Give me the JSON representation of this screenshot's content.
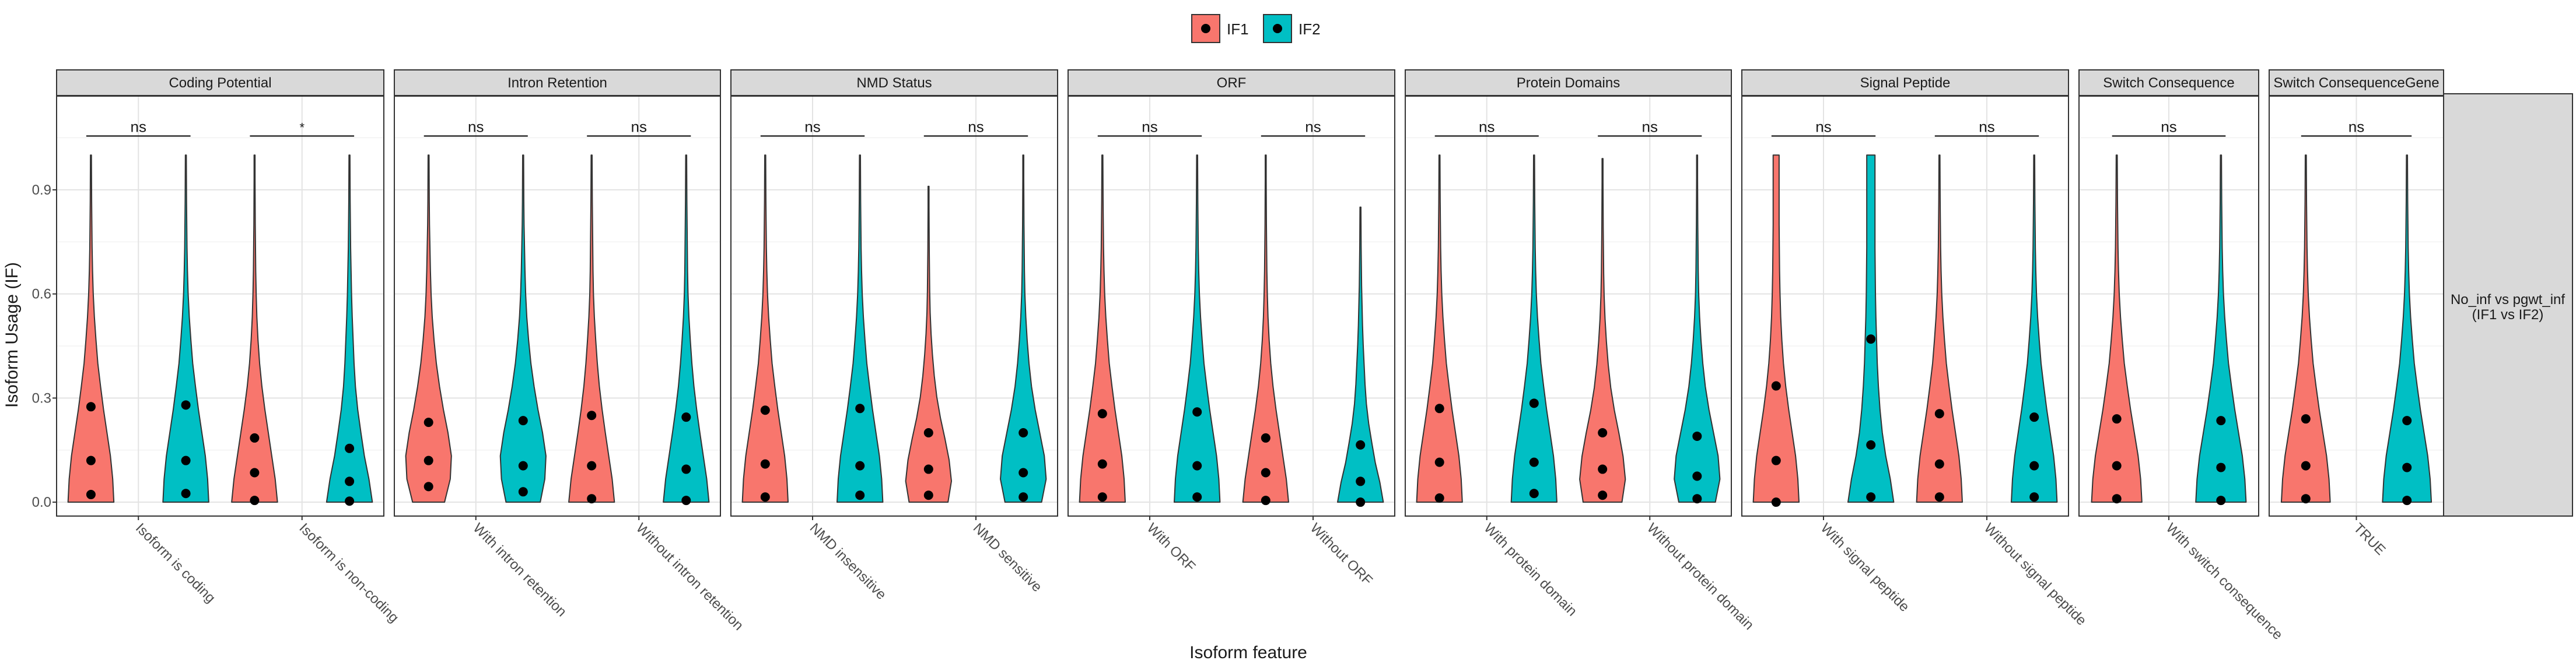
{
  "chart_data": {
    "type": "violin",
    "ylabel": "Isoform Usage (IF)",
    "xlabel": "Isoform feature",
    "ylim": [
      -0.04,
      1.17
    ],
    "y_ticks": [
      "0.0",
      "0.3",
      "0.6",
      "0.9"
    ],
    "y_tick_values": [
      0.0,
      0.3,
      0.6,
      0.9
    ],
    "grid": true,
    "legend_position": "top",
    "strip_right": "No_inf vs pgwt_inf\n(IF1 vs IF2)",
    "series": [
      {
        "name": "IF1",
        "color": "#F8766D"
      },
      {
        "name": "IF2",
        "color": "#00BFC4"
      }
    ],
    "panels": [
      {
        "title": "Coding Potential",
        "groups": [
          {
            "label": "Isoform is coding",
            "sig": "ns",
            "violins": [
              {
                "max": 1.0,
                "stats": [
                  0.022,
                  0.12,
                  0.275
                ],
                "w": [
                  1.0,
                  0.95,
                  0.85,
                  0.7,
                  0.55,
                  0.42,
                  0.3,
                  0.22,
                  0.15,
                  0.1,
                  0.07,
                  0.05,
                  0.04,
                  0.03,
                  0.025,
                  0.02
                ]
              },
              {
                "max": 1.0,
                "stats": [
                  0.025,
                  0.12,
                  0.28
                ],
                "w": [
                  1.0,
                  0.95,
                  0.85,
                  0.7,
                  0.55,
                  0.42,
                  0.3,
                  0.22,
                  0.15,
                  0.1,
                  0.07,
                  0.05,
                  0.04,
                  0.03,
                  0.025,
                  0.02
                ]
              }
            ]
          },
          {
            "label": "Isoform is non-coding",
            "sig": "*",
            "violins": [
              {
                "max": 1.0,
                "stats": [
                  0.005,
                  0.085,
                  0.185
                ],
                "w": [
                  1.0,
                  0.9,
                  0.75,
                  0.6,
                  0.45,
                  0.32,
                  0.22,
                  0.15,
                  0.1,
                  0.07,
                  0.05,
                  0.04,
                  0.03,
                  0.025,
                  0.02,
                  0.02
                ]
              },
              {
                "max": 1.0,
                "stats": [
                  0.003,
                  0.06,
                  0.155
                ],
                "w": [
                  1.0,
                  0.85,
                  0.65,
                  0.5,
                  0.36,
                  0.26,
                  0.2,
                  0.16,
                  0.12,
                  0.09,
                  0.07,
                  0.05,
                  0.04,
                  0.03,
                  0.025,
                  0.02
                ]
              }
            ]
          }
        ]
      },
      {
        "title": "Intron Retention",
        "groups": [
          {
            "label": "With intron retention",
            "sig": "ns",
            "violins": [
              {
                "max": 1.0,
                "stats": [
                  0.045,
                  0.12,
                  0.23
                ],
                "w": [
                  0.7,
                  0.95,
                  1.0,
                  0.85,
                  0.65,
                  0.48,
                  0.34,
                  0.24,
                  0.16,
                  0.11,
                  0.08,
                  0.06,
                  0.04,
                  0.03,
                  0.025,
                  0.02
                ]
              },
              {
                "max": 1.0,
                "stats": [
                  0.03,
                  0.105,
                  0.235
                ],
                "w": [
                  0.75,
                  0.95,
                  1.0,
                  0.85,
                  0.65,
                  0.48,
                  0.34,
                  0.24,
                  0.16,
                  0.11,
                  0.08,
                  0.06,
                  0.04,
                  0.03,
                  0.025,
                  0.02
                ]
              }
            ]
          },
          {
            "label": "Without intron retention",
            "sig": "ns",
            "violins": [
              {
                "max": 1.0,
                "stats": [
                  0.01,
                  0.105,
                  0.25
                ],
                "w": [
                  1.0,
                  0.9,
                  0.75,
                  0.6,
                  0.46,
                  0.34,
                  0.25,
                  0.18,
                  0.12,
                  0.08,
                  0.06,
                  0.05,
                  0.04,
                  0.03,
                  0.025,
                  0.02
                ]
              },
              {
                "max": 1.0,
                "stats": [
                  0.005,
                  0.095,
                  0.245
                ],
                "w": [
                  1.0,
                  0.9,
                  0.75,
                  0.6,
                  0.46,
                  0.34,
                  0.25,
                  0.18,
                  0.12,
                  0.08,
                  0.06,
                  0.05,
                  0.04,
                  0.03,
                  0.025,
                  0.02
                ]
              }
            ]
          }
        ]
      },
      {
        "title": "NMD Status",
        "groups": [
          {
            "label": "NMD insensitive",
            "sig": "ns",
            "violins": [
              {
                "max": 1.0,
                "stats": [
                  0.015,
                  0.11,
                  0.265
                ],
                "w": [
                  1.0,
                  0.95,
                  0.85,
                  0.7,
                  0.55,
                  0.42,
                  0.3,
                  0.22,
                  0.15,
                  0.1,
                  0.07,
                  0.05,
                  0.04,
                  0.03,
                  0.025,
                  0.02
                ]
              },
              {
                "max": 1.0,
                "stats": [
                  0.02,
                  0.105,
                  0.27
                ],
                "w": [
                  1.0,
                  0.95,
                  0.85,
                  0.7,
                  0.55,
                  0.42,
                  0.3,
                  0.22,
                  0.15,
                  0.1,
                  0.07,
                  0.05,
                  0.04,
                  0.03,
                  0.025,
                  0.02
                ]
              }
            ]
          },
          {
            "label": "NMD sensitive",
            "sig": "ns",
            "violins": [
              {
                "max": 0.91,
                "stats": [
                  0.02,
                  0.095,
                  0.2
                ],
                "w": [
                  0.85,
                  1.0,
                  0.9,
                  0.72,
                  0.52,
                  0.36,
                  0.25,
                  0.17,
                  0.11,
                  0.07,
                  0.05,
                  0.04,
                  0.03,
                  0.025,
                  0.02,
                  0.02
                ]
              },
              {
                "max": 1.0,
                "stats": [
                  0.015,
                  0.085,
                  0.2
                ],
                "w": [
                  0.8,
                  1.0,
                  0.92,
                  0.72,
                  0.52,
                  0.36,
                  0.25,
                  0.17,
                  0.11,
                  0.07,
                  0.05,
                  0.04,
                  0.03,
                  0.025,
                  0.02,
                  0.02
                ]
              }
            ]
          }
        ]
      },
      {
        "title": "ORF",
        "groups": [
          {
            "label": "With ORF",
            "sig": "ns",
            "violins": [
              {
                "max": 1.0,
                "stats": [
                  0.015,
                  0.11,
                  0.255
                ],
                "w": [
                  1.0,
                  0.95,
                  0.85,
                  0.7,
                  0.55,
                  0.42,
                  0.3,
                  0.22,
                  0.15,
                  0.1,
                  0.07,
                  0.05,
                  0.04,
                  0.03,
                  0.025,
                  0.02
                ]
              },
              {
                "max": 1.0,
                "stats": [
                  0.015,
                  0.105,
                  0.26
                ],
                "w": [
                  1.0,
                  0.95,
                  0.85,
                  0.7,
                  0.55,
                  0.42,
                  0.3,
                  0.22,
                  0.15,
                  0.1,
                  0.07,
                  0.05,
                  0.04,
                  0.03,
                  0.025,
                  0.02
                ]
              }
            ]
          },
          {
            "label": "Without ORF",
            "sig": "ns",
            "violins": [
              {
                "max": 1.0,
                "stats": [
                  0.005,
                  0.085,
                  0.185
                ],
                "w": [
                  1.0,
                  0.9,
                  0.75,
                  0.6,
                  0.45,
                  0.32,
                  0.22,
                  0.15,
                  0.1,
                  0.07,
                  0.05,
                  0.04,
                  0.03,
                  0.025,
                  0.02,
                  0.02
                ]
              },
              {
                "max": 0.85,
                "stats": [
                  0.0,
                  0.06,
                  0.165
                ],
                "w": [
                  1.0,
                  0.85,
                  0.65,
                  0.5,
                  0.36,
                  0.26,
                  0.2,
                  0.16,
                  0.12,
                  0.09,
                  0.07,
                  0.05,
                  0.04,
                  0.03,
                  0.025,
                  0.02
                ]
              }
            ]
          }
        ]
      },
      {
        "title": "Protein Domains",
        "groups": [
          {
            "label": "With protein domain",
            "sig": "ns",
            "violins": [
              {
                "max": 1.0,
                "stats": [
                  0.012,
                  0.115,
                  0.27
                ],
                "w": [
                  1.0,
                  0.95,
                  0.85,
                  0.7,
                  0.55,
                  0.42,
                  0.3,
                  0.22,
                  0.15,
                  0.1,
                  0.07,
                  0.05,
                  0.04,
                  0.03,
                  0.025,
                  0.02
                ]
              },
              {
                "max": 1.0,
                "stats": [
                  0.025,
                  0.115,
                  0.285
                ],
                "w": [
                  1.0,
                  0.95,
                  0.85,
                  0.7,
                  0.55,
                  0.42,
                  0.3,
                  0.22,
                  0.15,
                  0.1,
                  0.07,
                  0.05,
                  0.04,
                  0.03,
                  0.025,
                  0.02
                ]
              }
            ]
          },
          {
            "label": "Without protein domain",
            "sig": "ns",
            "violins": [
              {
                "max": 0.99,
                "stats": [
                  0.02,
                  0.095,
                  0.2
                ],
                "w": [
                  0.85,
                  1.0,
                  0.9,
                  0.72,
                  0.52,
                  0.36,
                  0.25,
                  0.17,
                  0.11,
                  0.07,
                  0.05,
                  0.04,
                  0.03,
                  0.025,
                  0.02,
                  0.02
                ]
              },
              {
                "max": 1.0,
                "stats": [
                  0.01,
                  0.075,
                  0.19
                ],
                "w": [
                  0.8,
                  1.0,
                  0.92,
                  0.72,
                  0.52,
                  0.36,
                  0.25,
                  0.17,
                  0.11,
                  0.07,
                  0.05,
                  0.04,
                  0.03,
                  0.025,
                  0.02,
                  0.02
                ]
              }
            ]
          }
        ]
      },
      {
        "title": "Signal Peptide",
        "groups": [
          {
            "label": "With signal peptide",
            "sig": "ns",
            "violins": [
              {
                "max": 1.0,
                "stats": [
                  0.0,
                  0.12,
                  0.335
                ],
                "w": [
                  1.0,
                  0.95,
                  0.85,
                  0.7,
                  0.55,
                  0.42,
                  0.32,
                  0.25,
                  0.2,
                  0.17,
                  0.15,
                  0.14,
                  0.13,
                  0.13,
                  0.13,
                  0.13
                ]
              },
              {
                "max": 1.0,
                "stats": [
                  0.015,
                  0.165,
                  0.47
                ],
                "w": [
                  1.0,
                  0.85,
                  0.65,
                  0.5,
                  0.4,
                  0.33,
                  0.28,
                  0.25,
                  0.22,
                  0.2,
                  0.19,
                  0.18,
                  0.18,
                  0.18,
                  0.18,
                  0.18
                ]
              }
            ]
          },
          {
            "label": "Without signal peptide",
            "sig": "ns",
            "violins": [
              {
                "max": 1.0,
                "stats": [
                  0.015,
                  0.11,
                  0.255
                ],
                "w": [
                  1.0,
                  0.95,
                  0.85,
                  0.7,
                  0.55,
                  0.42,
                  0.3,
                  0.22,
                  0.15,
                  0.1,
                  0.07,
                  0.05,
                  0.04,
                  0.03,
                  0.025,
                  0.02
                ]
              },
              {
                "max": 1.0,
                "stats": [
                  0.015,
                  0.105,
                  0.245
                ],
                "w": [
                  1.0,
                  0.95,
                  0.85,
                  0.7,
                  0.55,
                  0.42,
                  0.3,
                  0.22,
                  0.15,
                  0.1,
                  0.07,
                  0.05,
                  0.04,
                  0.03,
                  0.025,
                  0.02
                ]
              }
            ]
          }
        ]
      },
      {
        "title": "Switch Consequence",
        "groups": [
          {
            "label": "With switch consequence",
            "sig": "ns",
            "violins": [
              {
                "max": 1.0,
                "stats": [
                  0.01,
                  0.105,
                  0.24
                ],
                "w": [
                  1.0,
                  0.95,
                  0.85,
                  0.7,
                  0.55,
                  0.42,
                  0.3,
                  0.22,
                  0.15,
                  0.1,
                  0.07,
                  0.05,
                  0.04,
                  0.03,
                  0.025,
                  0.02
                ]
              },
              {
                "max": 1.0,
                "stats": [
                  0.005,
                  0.1,
                  0.235
                ],
                "w": [
                  1.0,
                  0.95,
                  0.85,
                  0.7,
                  0.55,
                  0.42,
                  0.3,
                  0.22,
                  0.15,
                  0.1,
                  0.07,
                  0.05,
                  0.04,
                  0.03,
                  0.025,
                  0.02
                ]
              }
            ]
          }
        ]
      },
      {
        "title": "Switch ConsequenceGene",
        "groups": [
          {
            "label": "TRUE",
            "sig": "ns",
            "violins": [
              {
                "max": 1.0,
                "stats": [
                  0.01,
                  0.105,
                  0.24
                ],
                "w": [
                  1.0,
                  0.95,
                  0.85,
                  0.7,
                  0.55,
                  0.42,
                  0.3,
                  0.22,
                  0.15,
                  0.1,
                  0.07,
                  0.05,
                  0.04,
                  0.03,
                  0.025,
                  0.02
                ]
              },
              {
                "max": 1.0,
                "stats": [
                  0.005,
                  0.1,
                  0.235
                ],
                "w": [
                  1.0,
                  0.95,
                  0.85,
                  0.7,
                  0.55,
                  0.42,
                  0.3,
                  0.22,
                  0.15,
                  0.1,
                  0.07,
                  0.05,
                  0.04,
                  0.03,
                  0.025,
                  0.02
                ]
              }
            ]
          }
        ]
      }
    ]
  }
}
